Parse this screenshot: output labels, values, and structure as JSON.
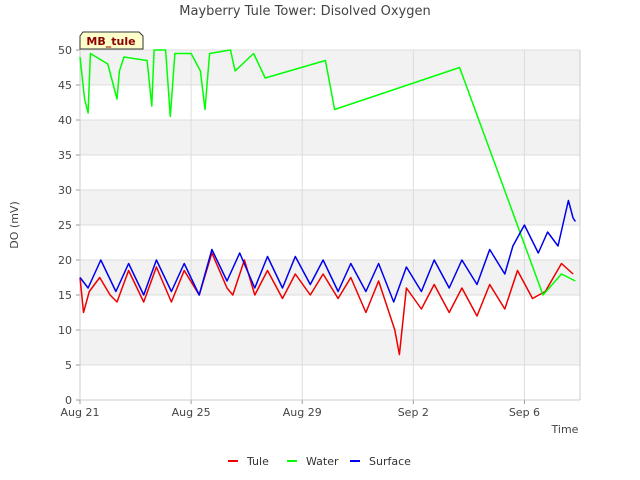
{
  "chart_data": {
    "type": "line",
    "title": "Mayberry Tule Tower: Disolved Oxygen",
    "xlabel": "Time",
    "ylabel": "DO (mV)",
    "site_tag": "MB_tule",
    "ylim": [
      0,
      50
    ],
    "yticks": [
      0,
      5,
      10,
      15,
      20,
      25,
      30,
      35,
      40,
      45,
      50
    ],
    "xlim": [
      "2021-08-21",
      "2021-09-08"
    ],
    "xticks": [
      {
        "date": "2021-08-21",
        "label": "Aug 21"
      },
      {
        "date": "2021-08-25",
        "label": "Aug 25"
      },
      {
        "date": "2021-08-29",
        "label": "Aug 29"
      },
      {
        "date": "2021-09-02",
        "label": "Sep 2"
      },
      {
        "date": "2021-09-06",
        "label": "Sep 6"
      }
    ],
    "grid": true,
    "legend": "bottom",
    "series": [
      {
        "name": "Tule",
        "color": "#ee0000",
        "points": [
          [
            "2021-08-21 00:00",
            17.5
          ],
          [
            "2021-08-21 03:00",
            12.5
          ],
          [
            "2021-08-21 08:00",
            15.5
          ],
          [
            "2021-08-21 17:00",
            17.5
          ],
          [
            "2021-08-22 02:00",
            15.0
          ],
          [
            "2021-08-22 08:00",
            14.0
          ],
          [
            "2021-08-22 18:00",
            18.5
          ],
          [
            "2021-08-23 07:00",
            14.0
          ],
          [
            "2021-08-23 18:00",
            19.0
          ],
          [
            "2021-08-24 07:00",
            14.0
          ],
          [
            "2021-08-24 18:00",
            18.5
          ],
          [
            "2021-08-25 07:00",
            15.0
          ],
          [
            "2021-08-25 18:00",
            21.0
          ],
          [
            "2021-08-26 07:00",
            16.0
          ],
          [
            "2021-08-26 12:00",
            15.0
          ],
          [
            "2021-08-26 22:00",
            20.0
          ],
          [
            "2021-08-27 07:00",
            15.0
          ],
          [
            "2021-08-27 18:00",
            18.5
          ],
          [
            "2021-08-28 07:00",
            14.5
          ],
          [
            "2021-08-28 18:00",
            18.0
          ],
          [
            "2021-08-29 07:00",
            15.0
          ],
          [
            "2021-08-29 18:00",
            18.0
          ],
          [
            "2021-08-30 07:00",
            14.5
          ],
          [
            "2021-08-30 18:00",
            17.5
          ],
          [
            "2021-08-31 07:00",
            12.5
          ],
          [
            "2021-08-31 18:00",
            17.0
          ],
          [
            "2021-09-01 04:00",
            12.0
          ],
          [
            "2021-09-01 08:00",
            10.0
          ],
          [
            "2021-09-01 12:00",
            6.5
          ],
          [
            "2021-09-01 18:00",
            16.0
          ],
          [
            "2021-09-02 07:00",
            13.0
          ],
          [
            "2021-09-02 18:00",
            16.5
          ],
          [
            "2021-09-03 07:00",
            12.5
          ],
          [
            "2021-09-03 18:00",
            16.0
          ],
          [
            "2021-09-04 07:00",
            12.0
          ],
          [
            "2021-09-04 18:00",
            16.5
          ],
          [
            "2021-09-05 07:00",
            13.0
          ],
          [
            "2021-09-05 18:00",
            18.5
          ],
          [
            "2021-09-06 07:00",
            14.5
          ],
          [
            "2021-09-06 18:00",
            15.5
          ],
          [
            "2021-09-07 08:00",
            19.5
          ],
          [
            "2021-09-07 18:00",
            18.0
          ]
        ]
      },
      {
        "name": "Water",
        "color": "#00ff00",
        "points": [
          [
            "2021-08-21 00:00",
            49.0
          ],
          [
            "2021-08-21 04:00",
            43.0
          ],
          [
            "2021-08-21 07:00",
            41.0
          ],
          [
            "2021-08-21 09:00",
            49.5
          ],
          [
            "2021-08-22 00:00",
            48.0
          ],
          [
            "2021-08-22 08:00",
            43.0
          ],
          [
            "2021-08-22 10:00",
            47.0
          ],
          [
            "2021-08-22 14:00",
            49.0
          ],
          [
            "2021-08-23 10:00",
            48.5
          ],
          [
            "2021-08-23 14:00",
            42.0
          ],
          [
            "2021-08-23 16:00",
            50.0
          ],
          [
            "2021-08-24 02:00",
            50.0
          ],
          [
            "2021-08-24 06:00",
            40.5
          ],
          [
            "2021-08-24 10:00",
            49.5
          ],
          [
            "2021-08-25 00:00",
            49.5
          ],
          [
            "2021-08-25 08:00",
            47.0
          ],
          [
            "2021-08-25 12:00",
            41.5
          ],
          [
            "2021-08-25 16:00",
            49.5
          ],
          [
            "2021-08-26 10:00",
            50.0
          ],
          [
            "2021-08-26 14:00",
            47.0
          ],
          [
            "2021-08-27 06:00",
            49.5
          ],
          [
            "2021-08-27 16:00",
            46.0
          ],
          [
            "2021-08-29 20:00",
            48.5
          ],
          [
            "2021-08-30 04:00",
            41.5
          ],
          [
            "2021-09-03 16:00",
            47.5
          ],
          [
            "2021-09-06 16:00",
            15.0
          ],
          [
            "2021-09-07 08:00",
            18.0
          ],
          [
            "2021-09-07 20:00",
            17.0
          ]
        ]
      },
      {
        "name": "Surface",
        "color": "#0000ee",
        "points": [
          [
            "2021-08-21 00:00",
            17.5
          ],
          [
            "2021-08-21 07:00",
            16.0
          ],
          [
            "2021-08-21 18:00",
            20.0
          ],
          [
            "2021-08-22 07:00",
            15.5
          ],
          [
            "2021-08-22 18:00",
            19.5
          ],
          [
            "2021-08-23 07:00",
            15.0
          ],
          [
            "2021-08-23 18:00",
            20.0
          ],
          [
            "2021-08-24 07:00",
            15.5
          ],
          [
            "2021-08-24 18:00",
            19.5
          ],
          [
            "2021-08-25 07:00",
            15.0
          ],
          [
            "2021-08-25 18:00",
            21.5
          ],
          [
            "2021-08-26 07:00",
            17.0
          ],
          [
            "2021-08-26 18:00",
            21.0
          ],
          [
            "2021-08-27 07:00",
            16.0
          ],
          [
            "2021-08-27 18:00",
            20.5
          ],
          [
            "2021-08-28 07:00",
            16.0
          ],
          [
            "2021-08-28 18:00",
            20.5
          ],
          [
            "2021-08-29 07:00",
            16.5
          ],
          [
            "2021-08-29 18:00",
            20.0
          ],
          [
            "2021-08-30 07:00",
            15.5
          ],
          [
            "2021-08-30 18:00",
            19.5
          ],
          [
            "2021-08-31 07:00",
            15.5
          ],
          [
            "2021-08-31 18:00",
            19.5
          ],
          [
            "2021-09-01 07:00",
            14.0
          ],
          [
            "2021-09-01 18:00",
            19.0
          ],
          [
            "2021-09-02 07:00",
            15.5
          ],
          [
            "2021-09-02 18:00",
            20.0
          ],
          [
            "2021-09-03 07:00",
            16.0
          ],
          [
            "2021-09-03 18:00",
            20.0
          ],
          [
            "2021-09-04 07:00",
            16.5
          ],
          [
            "2021-09-04 18:00",
            21.5
          ],
          [
            "2021-09-05 07:00",
            18.0
          ],
          [
            "2021-09-05 14:00",
            22.0
          ],
          [
            "2021-09-06 00:00",
            25.0
          ],
          [
            "2021-09-06 12:00",
            21.0
          ],
          [
            "2021-09-06 20:00",
            24.0
          ],
          [
            "2021-09-07 05:00",
            22.0
          ],
          [
            "2021-09-07 14:00",
            28.5
          ],
          [
            "2021-09-07 18:00",
            26.0
          ],
          [
            "2021-09-07 20:00",
            25.5
          ]
        ]
      }
    ]
  }
}
